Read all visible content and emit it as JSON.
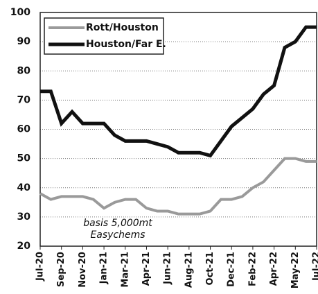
{
  "chart_data": {
    "type": "line",
    "categories": [
      "Jul-20",
      null,
      "Sep-20",
      null,
      "Nov-20",
      null,
      "Jan-21",
      null,
      "Mar-21",
      null,
      "Apr-21",
      null,
      "Jun-21",
      null,
      "Aug-21",
      null,
      "Oct-21",
      null,
      "Dec-21",
      null,
      "Feb-22",
      null,
      "Apr-22",
      null,
      "May-22",
      null,
      "Jul-22"
    ],
    "series": [
      {
        "name": "Rott/Houston",
        "color": "#9a9a9a",
        "values": [
          38,
          36,
          37,
          37,
          37,
          36,
          33,
          35,
          36,
          36,
          33,
          32,
          32,
          31,
          31,
          31,
          32,
          36,
          36,
          37,
          40,
          42,
          46,
          50,
          50,
          49,
          49
        ]
      },
      {
        "name": "Houston/Far E.",
        "color": "#111111",
        "values": [
          73,
          73,
          62,
          66,
          62,
          62,
          62,
          58,
          56,
          56,
          56,
          55,
          54,
          52,
          52,
          52,
          51,
          56,
          61,
          64,
          67,
          72,
          75,
          88,
          90,
          95,
          95
        ]
      }
    ],
    "ylim": [
      20,
      100
    ],
    "yticks": [
      20,
      30,
      40,
      50,
      60,
      70,
      80,
      90,
      100
    ],
    "grid": true,
    "legend": "upper left",
    "annotations": [
      "basis 5,000mt",
      "Easychems"
    ]
  }
}
